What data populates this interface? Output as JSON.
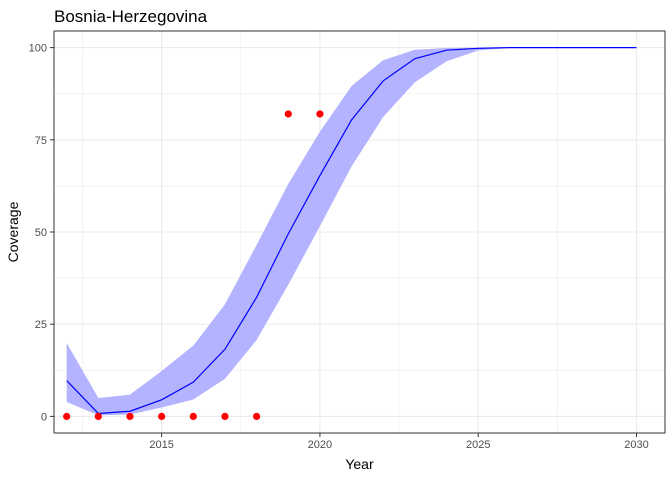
{
  "chart_data": {
    "type": "line",
    "title": "Bosnia-Herzegovina",
    "xlabel": "Year",
    "ylabel": "Coverage",
    "xlim": [
      2011.6,
      2030.9
    ],
    "ylim": [
      -4.5,
      104.5
    ],
    "x_ticks": [
      2015,
      2020,
      2025,
      2030
    ],
    "y_ticks": [
      0,
      25,
      50,
      75,
      100
    ],
    "grid": true,
    "legend": "none",
    "colors": {
      "line": "#0000ff",
      "band": "#b3b3ff",
      "points": "#ff0000",
      "grid": "#ebebeb",
      "panel_border": "#333333"
    },
    "series": [
      {
        "kind": "line",
        "x": [
          2012,
          2013,
          2014,
          2015,
          2016,
          2017,
          2018,
          2019,
          2020,
          2021,
          2022,
          2023,
          2024,
          2025,
          2026,
          2027,
          2028,
          2029,
          2030
        ],
        "y": [
          9.7,
          0.8,
          1.4,
          4.5,
          9.3,
          18.2,
          32.3,
          49.5,
          65.3,
          80.4,
          91.0,
          97.0,
          99.3,
          99.8,
          100,
          100,
          100,
          100,
          100
        ]
      },
      {
        "kind": "band",
        "x": [
          2012,
          2013,
          2014,
          2015,
          2016,
          2017,
          2018,
          2019,
          2020,
          2021,
          2022,
          2023,
          2024,
          2025,
          2026,
          2027,
          2028,
          2029,
          2030
        ],
        "lower": [
          3.9,
          0.3,
          0.5,
          2.4,
          4.6,
          10.2,
          20.7,
          35.7,
          51.6,
          67.8,
          81.2,
          90.6,
          96.3,
          99.2,
          99.9,
          100,
          100,
          100,
          100
        ],
        "upper": [
          19.9,
          5.0,
          5.9,
          12.3,
          19.2,
          30.4,
          46.5,
          63.0,
          77.2,
          89.6,
          96.6,
          99.4,
          99.9,
          100,
          100,
          100,
          100,
          100,
          100
        ]
      },
      {
        "kind": "points",
        "x": [
          2012,
          2013,
          2014,
          2015,
          2016,
          2017,
          2018,
          2019,
          2020
        ],
        "y": [
          0,
          0,
          0,
          0,
          0,
          0,
          0,
          82,
          82
        ]
      }
    ]
  }
}
